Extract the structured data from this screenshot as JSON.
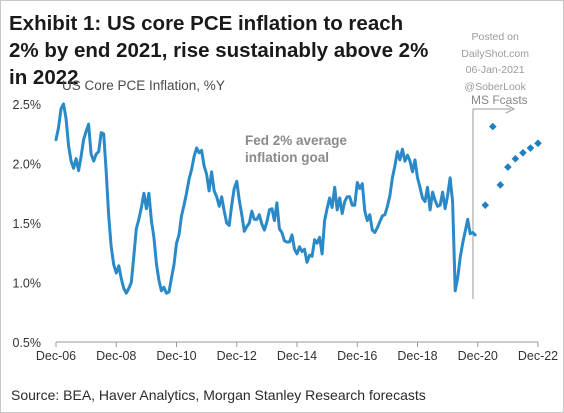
{
  "header": {
    "title_prefix": "Exhibit 1:",
    "title_rest": "US core PCE inflation to reach 2% by end 2021, rise sustainably above 2% in 2022"
  },
  "watermark": {
    "posted": "Posted on",
    "site": "DailyShot.com",
    "date": "06-Jan-2021",
    "handle": "@SoberLook"
  },
  "footer": {
    "source": "Source: BEA, Haver Analytics, Morgan Stanley Research forecasts"
  },
  "chart_data": {
    "type": "line",
    "subtitle": "US Core PCE Inflation, %Y",
    "xlabel": "",
    "ylabel": "",
    "ylim": [
      0.5,
      2.5
    ],
    "y_ticks": [
      "0.5%",
      "1.0%",
      "1.5%",
      "2.0%",
      "2.5%"
    ],
    "x_ticks": [
      "Dec-06",
      "Dec-08",
      "Dec-10",
      "Dec-12",
      "Dec-14",
      "Dec-16",
      "Dec-18",
      "Dec-20",
      "Dec-22"
    ],
    "grid": false,
    "annotations": {
      "fed_goal": [
        "Fed 2% average",
        "inflation goal"
      ],
      "forecast": "MS Fcasts"
    },
    "colors": {
      "line": "#2a8ac8",
      "forecast": "#1f7fbf",
      "axis": "#9a9a9a"
    },
    "series": [
      {
        "kind": "actual",
        "x": [
          "2006-12",
          "2007-01",
          "2007-02",
          "2007-03",
          "2007-04",
          "2007-05",
          "2007-06",
          "2007-07",
          "2007-08",
          "2007-09",
          "2007-10",
          "2007-11",
          "2007-12",
          "2008-01",
          "2008-02",
          "2008-03",
          "2008-04",
          "2008-05",
          "2008-06",
          "2008-07",
          "2008-08",
          "2008-09",
          "2008-10",
          "2008-11",
          "2008-12",
          "2009-01",
          "2009-02",
          "2009-03",
          "2009-04",
          "2009-05",
          "2009-06",
          "2009-07",
          "2009-08",
          "2009-09",
          "2009-10",
          "2009-11",
          "2009-12",
          "2010-01",
          "2010-02",
          "2010-03",
          "2010-04",
          "2010-05",
          "2010-06",
          "2010-07",
          "2010-08",
          "2010-09",
          "2010-10",
          "2010-11",
          "2010-12",
          "2011-01",
          "2011-02",
          "2011-03",
          "2011-04",
          "2011-05",
          "2011-06",
          "2011-07",
          "2011-08",
          "2011-09",
          "2011-10",
          "2011-11",
          "2011-12",
          "2012-01",
          "2012-02",
          "2012-03",
          "2012-04",
          "2012-05",
          "2012-06",
          "2012-07",
          "2012-08",
          "2012-09",
          "2012-10",
          "2012-11",
          "2012-12",
          "2013-01",
          "2013-02",
          "2013-03",
          "2013-04",
          "2013-05",
          "2013-06",
          "2013-07",
          "2013-08",
          "2013-09",
          "2013-10",
          "2013-11",
          "2013-12",
          "2014-01",
          "2014-02",
          "2014-03",
          "2014-04",
          "2014-05",
          "2014-06",
          "2014-07",
          "2014-08",
          "2014-09",
          "2014-10",
          "2014-11",
          "2014-12",
          "2015-01",
          "2015-02",
          "2015-03",
          "2015-04",
          "2015-05",
          "2015-06",
          "2015-07",
          "2015-08",
          "2015-09",
          "2015-10",
          "2015-11",
          "2015-12",
          "2016-01",
          "2016-02",
          "2016-03",
          "2016-04",
          "2016-05",
          "2016-06",
          "2016-07",
          "2016-08",
          "2016-09",
          "2016-10",
          "2016-11",
          "2016-12",
          "2017-01",
          "2017-02",
          "2017-03",
          "2017-04",
          "2017-05",
          "2017-06",
          "2017-07",
          "2017-08",
          "2017-09",
          "2017-10",
          "2017-11",
          "2017-12",
          "2018-01",
          "2018-02",
          "2018-03",
          "2018-04",
          "2018-05",
          "2018-06",
          "2018-07",
          "2018-08",
          "2018-09",
          "2018-10",
          "2018-11",
          "2018-12",
          "2019-01",
          "2019-02",
          "2019-03",
          "2019-04",
          "2019-05",
          "2019-06",
          "2019-07",
          "2019-08",
          "2019-09",
          "2019-10",
          "2019-11",
          "2019-12",
          "2020-01",
          "2020-02",
          "2020-03",
          "2020-04",
          "2020-05",
          "2020-06",
          "2020-07",
          "2020-08",
          "2020-09",
          "2020-10",
          "2020-11"
        ],
        "y": [
          2.2,
          2.3,
          2.46,
          2.5,
          2.38,
          2.15,
          2.02,
          1.96,
          2.04,
          1.94,
          2.06,
          2.2,
          2.27,
          2.33,
          2.08,
          2.02,
          2.08,
          2.1,
          2.26,
          2.25,
          1.93,
          1.56,
          1.3,
          1.15,
          1.08,
          1.14,
          1.03,
          0.95,
          0.91,
          0.95,
          1.0,
          1.22,
          1.45,
          1.53,
          1.63,
          1.75,
          1.62,
          1.75,
          1.52,
          1.38,
          1.16,
          1.02,
          0.93,
          0.96,
          0.91,
          0.92,
          1.04,
          1.15,
          1.33,
          1.4,
          1.56,
          1.65,
          1.75,
          1.87,
          1.95,
          2.06,
          2.13,
          2.09,
          2.11,
          1.98,
          1.91,
          1.77,
          1.93,
          1.77,
          1.72,
          1.64,
          1.72,
          1.6,
          1.5,
          1.48,
          1.65,
          1.79,
          1.85,
          1.69,
          1.57,
          1.43,
          1.47,
          1.5,
          1.6,
          1.53,
          1.53,
          1.57,
          1.49,
          1.44,
          1.51,
          1.61,
          1.62,
          1.52,
          1.67,
          1.45,
          1.42,
          1.35,
          1.34,
          1.34,
          1.4,
          1.28,
          1.24,
          1.3,
          1.26,
          1.28,
          1.17,
          1.23,
          1.22,
          1.36,
          1.33,
          1.38,
          1.24,
          1.52,
          1.62,
          1.71,
          1.63,
          1.8,
          1.61,
          1.71,
          1.58,
          1.68,
          1.72,
          1.72,
          1.65,
          1.65,
          1.84,
          1.79,
          1.83,
          1.6,
          1.52,
          1.57,
          1.44,
          1.42,
          1.46,
          1.51,
          1.56,
          1.57,
          1.64,
          1.73,
          1.88,
          1.98,
          2.1,
          2.03,
          2.12,
          2.02,
          2.07,
          2.02,
          1.93,
          2.03,
          1.88,
          1.8,
          1.71,
          1.68,
          1.8,
          1.61,
          1.76,
          1.69,
          1.64,
          1.65,
          1.76,
          1.62,
          1.73,
          1.88,
          1.68,
          0.93,
          1.04,
          1.21,
          1.33,
          1.43,
          1.53,
          1.41,
          1.42,
          1.4
        ]
      },
      {
        "kind": "forecast",
        "x": [
          "2021-03",
          "2021-06",
          "2021-09",
          "2021-12",
          "2022-03",
          "2022-06",
          "2022-09",
          "2022-12"
        ],
        "y": [
          1.65,
          2.31,
          1.82,
          1.97,
          2.04,
          2.09,
          2.13,
          2.17
        ]
      }
    ]
  }
}
